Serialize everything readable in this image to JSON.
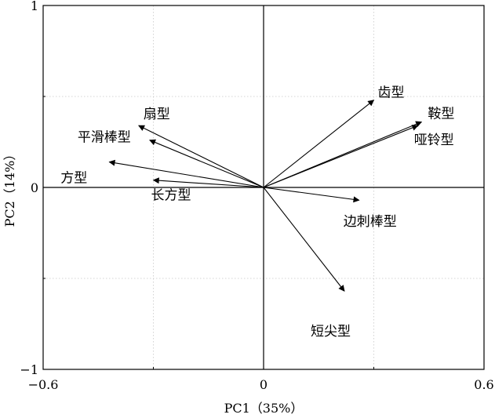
{
  "chart_data": {
    "type": "biplot",
    "xlabel": "PC1（35%）",
    "ylabel": "PC2（14%）",
    "xlim": [
      -0.6,
      0.6
    ],
    "ylim": [
      -1,
      1
    ],
    "xticks": [
      -0.6,
      0,
      0.6
    ],
    "xtick_labels": [
      "−0.6",
      "0",
      "0.6"
    ],
    "yticks": [
      -1,
      0,
      1
    ],
    "ytick_labels": [
      "−1",
      "0",
      "1"
    ],
    "minor_grid_x": [
      -0.3,
      0.3
    ],
    "minor_grid_y": [
      -0.5,
      0.5
    ],
    "grid": "dotted",
    "vectors": [
      {
        "name": "齿型",
        "x": 0.3,
        "y": 0.48
      },
      {
        "name": "鞍型",
        "x": 0.43,
        "y": 0.36
      },
      {
        "name": "哑铃型",
        "x": 0.42,
        "y": 0.34
      },
      {
        "name": "扇型",
        "x": -0.34,
        "y": 0.34
      },
      {
        "name": "平滑棒型",
        "x": -0.31,
        "y": 0.26
      },
      {
        "name": "方型",
        "x": -0.42,
        "y": 0.14
      },
      {
        "name": "长方型",
        "x": -0.3,
        "y": 0.04
      },
      {
        "name": "边刺棒型",
        "x": 0.26,
        "y": -0.07
      },
      {
        "name": "短尖型",
        "x": 0.22,
        "y": -0.57
      }
    ]
  }
}
